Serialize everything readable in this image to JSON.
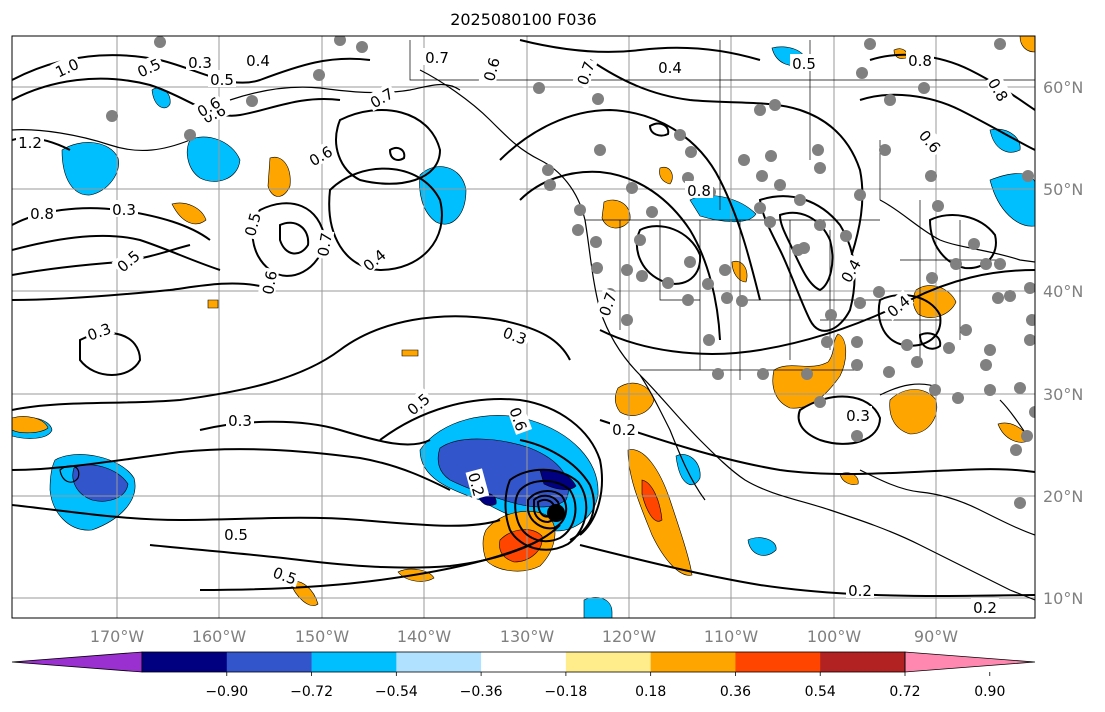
{
  "title": "2025080100 F036",
  "map": {
    "lat_labels": [
      "60°N",
      "50°N",
      "40°N",
      "30°N",
      "20°N",
      "10°N"
    ],
    "lon_labels": [
      "170°W",
      "160°W",
      "150°W",
      "140°W",
      "130°W",
      "120°W",
      "110°W",
      "100°W",
      "90°W"
    ],
    "contour_labels": [
      "1.0",
      "0.5",
      "0.3",
      "0.4",
      "0.7",
      "0.6",
      "0.7",
      "0.4",
      "0.5",
      "0.7",
      "0.5",
      "0.8",
      "1.2",
      "0.6",
      "0.6",
      "0.5",
      "0.8",
      "0.8",
      "0.3",
      "0.5",
      "0.7",
      "0.6",
      "0.4",
      "0.6",
      "0.8",
      "0.7",
      "0.4",
      "0.4",
      "0.3",
      "0.5",
      "0.6",
      "0.3",
      "0.3",
      "0.5",
      "0.5",
      "0.2",
      "0.2",
      "0.2",
      "0.2",
      "0.3",
      "0.6"
    ]
  },
  "colorbar": {
    "tick_labels": [
      "−0.90",
      "−0.72",
      "−0.54",
      "−0.36",
      "−0.18",
      "0.18",
      "0.36",
      "0.54",
      "0.72",
      "0.90"
    ],
    "colors": [
      "#9b30d0",
      "#000080",
      "#3355cc",
      "#00bfff",
      "#b0e2ff",
      "#ffffff",
      "#ffec8b",
      "#ffa500",
      "#ff4500",
      "#b22222",
      "#ff88b0"
    ]
  },
  "station_color": "#808080"
}
